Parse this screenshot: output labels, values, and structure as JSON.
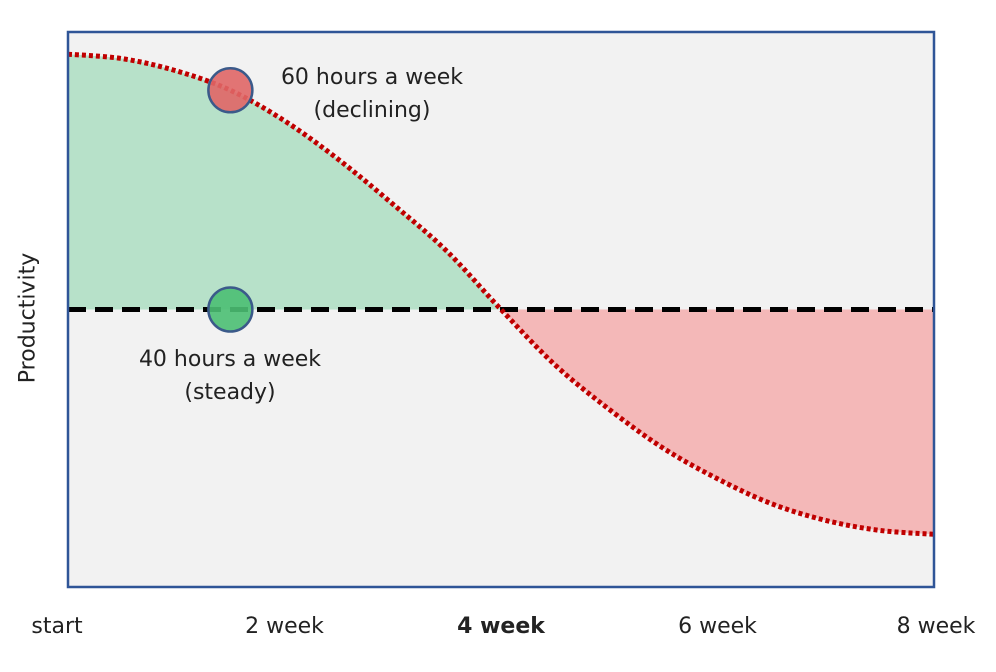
{
  "chart_data": {
    "type": "area",
    "xlabel": "",
    "ylabel": "Productivity",
    "x_ticks": [
      {
        "label": "start",
        "emphasis": false
      },
      {
        "label": "2 week",
        "emphasis": false
      },
      {
        "label": "4 week",
        "emphasis": true
      },
      {
        "label": "6 week",
        "emphasis": false
      },
      {
        "label": "8 week",
        "emphasis": false
      }
    ],
    "x_tick_values": [
      0,
      2,
      4,
      6,
      8
    ],
    "xlim": [
      0,
      8
    ],
    "ylim": [
      0,
      10
    ],
    "grid": false,
    "legend": "none",
    "series": [
      {
        "x": [
          0,
          0.5,
          1,
          1.5,
          2,
          2.5,
          3,
          3.5,
          4,
          4.5,
          5,
          5.5,
          6,
          6.5,
          7,
          7.5,
          8
        ],
        "y": [
          9.6,
          9.52,
          9.3,
          8.95,
          8.4,
          7.7,
          6.9,
          6.05,
          5.0,
          4.0,
          3.2,
          2.5,
          1.95,
          1.5,
          1.2,
          1.02,
          0.95
        ],
        "color": "#c00000",
        "style": "dotted"
      },
      {
        "x": [
          0,
          8
        ],
        "y": [
          5.0,
          5.0
        ],
        "color": "#000000",
        "style": "dashed"
      }
    ],
    "markers": [
      {
        "x": 1.5,
        "y": 8.95,
        "color": "#e06666"
      },
      {
        "x": 1.5,
        "y": 5.0,
        "color": "#4bbf73"
      }
    ],
    "annotations": [
      {
        "line1": "60 hours a week",
        "line2": "(declining)"
      },
      {
        "line1": "40 hours a week",
        "line2": "(steady)"
      }
    ],
    "fill_above_color": "#b7e1c9",
    "fill_below_color": "#f4b8b8",
    "plot_background": "#f2f2f2",
    "frame_color": "#2f5597"
  }
}
